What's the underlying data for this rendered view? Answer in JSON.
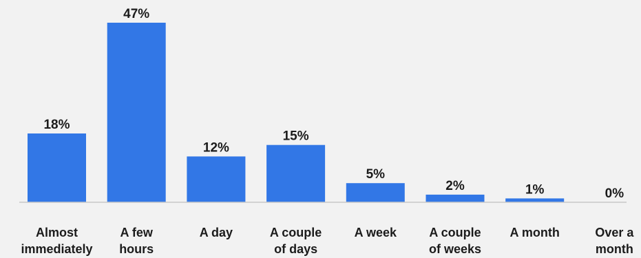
{
  "chart_data": {
    "type": "bar",
    "categories": [
      [
        "Almost",
        "immediately"
      ],
      [
        "A few",
        "hours"
      ],
      [
        "A day"
      ],
      [
        "A couple",
        "of days"
      ],
      [
        "A week"
      ],
      [
        "A couple",
        "of weeks"
      ],
      [
        "A month"
      ],
      [
        "Over a",
        "month"
      ]
    ],
    "values": [
      18,
      47,
      12,
      15,
      5,
      2,
      1,
      0
    ],
    "value_labels": [
      "18%",
      "47%",
      "12%",
      "15%",
      "5%",
      "2%",
      "1%",
      "0%"
    ],
    "title": "",
    "xlabel": "",
    "ylabel": "",
    "ylim": [
      0,
      47
    ],
    "grid": false,
    "legend": "none",
    "bar_color": "#3277e6",
    "baseline_color": "#c8c8c8",
    "background_color": "#f2f2f2",
    "text_color": "#1b1b1b"
  }
}
